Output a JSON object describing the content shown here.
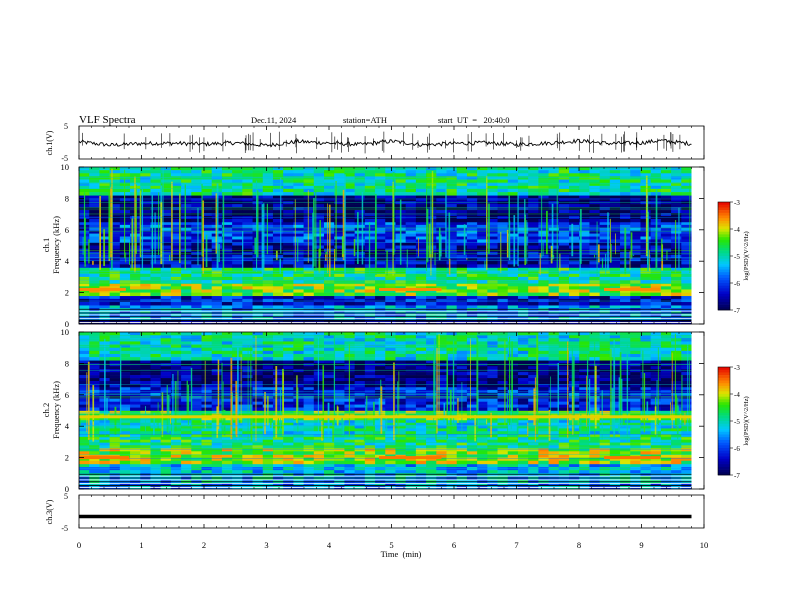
{
  "header": {
    "title": "VLF  Spectra",
    "date": "Dec.11, 2024",
    "station": "station=ATH",
    "start": "start  UT  =   20:40:0"
  },
  "colors": {
    "low": "#000066",
    "mid": "#00cc44",
    "high": "#ee0000",
    "trace": "#000000",
    "stripe": "#ffffff"
  },
  "chart_data": [
    {
      "type": "line",
      "name": "ch1-waveform",
      "ylabel": "ch.1(V)",
      "ylim": [
        -5,
        5
      ],
      "yticks": [
        "5",
        "-5"
      ],
      "xlim": [
        0,
        10
      ],
      "x": [
        0,
        0.5,
        1,
        1.5,
        2,
        2.5,
        3,
        3.5,
        4,
        4.5,
        5,
        5.5,
        6,
        6.5,
        7,
        7.5,
        8,
        8.5,
        9,
        9.3,
        9.8
      ],
      "y": [
        0.2,
        -0.8,
        -0.3,
        -0.2,
        -0.5,
        -0.1,
        -0.9,
        0.3,
        -0.2,
        -0.6,
        0.4,
        -0.7,
        -0.3,
        -0.1,
        -0.6,
        -0.2,
        0.5,
        -0.3,
        -0.1,
        0.6,
        -0.4
      ]
    },
    {
      "type": "heatmap",
      "name": "ch1-spectrogram",
      "ylabel": "ch.1\nFrequency (kHz)",
      "ylim": [
        0,
        10
      ],
      "yticks": [
        "0",
        "2",
        "4",
        "6",
        "8",
        "10"
      ],
      "xlim": [
        0,
        10
      ],
      "colorbar": {
        "label": "log(PSD)(V^2/Hz)",
        "range": [
          -7,
          -3
        ],
        "ticks": [
          "-3",
          "-4",
          "-5",
          "-6",
          "-7"
        ]
      },
      "bands_khz": [
        {
          "from": 0.0,
          "to": 0.3,
          "level": -7.0
        },
        {
          "from": 0.3,
          "to": 1.2,
          "level": -5.5
        },
        {
          "from": 1.2,
          "to": 1.8,
          "level": -6.3
        },
        {
          "from": 1.8,
          "to": 2.6,
          "level": -4.3
        },
        {
          "from": 2.6,
          "to": 3.6,
          "level": -4.8
        },
        {
          "from": 3.6,
          "to": 5.2,
          "level": -6.6
        },
        {
          "from": 5.2,
          "to": 6.5,
          "level": -6.0
        },
        {
          "from": 6.5,
          "to": 8.2,
          "level": -6.8
        },
        {
          "from": 8.2,
          "to": 10.0,
          "level": -4.9
        }
      ],
      "hot_segments": [
        {
          "t0": 0.0,
          "t1": 0.75,
          "f": 2.2,
          "level": -3.6
        },
        {
          "t0": 4.8,
          "t1": 5.8,
          "f": 2.2,
          "level": -3.6
        },
        {
          "t0": 8.4,
          "t1": 9.3,
          "f": 2.2,
          "level": -3.6
        }
      ]
    },
    {
      "type": "heatmap",
      "name": "ch2-spectrogram",
      "ylabel": "ch.2\nFrequency (kHz)",
      "ylim": [
        0,
        10
      ],
      "yticks": [
        "0",
        "2",
        "4",
        "6",
        "8",
        "10"
      ],
      "xlim": [
        0,
        10
      ],
      "colorbar": {
        "label": "log(PSD)(V^2/Hz)",
        "range": [
          -7,
          -3
        ],
        "ticks": [
          "-3",
          "-4",
          "-5",
          "-6",
          "-7"
        ]
      },
      "bands_khz": [
        {
          "from": 0.0,
          "to": 0.4,
          "level": -5.6
        },
        {
          "from": 0.4,
          "to": 1.6,
          "level": -5.3
        },
        {
          "from": 1.6,
          "to": 2.6,
          "level": -4.2
        },
        {
          "from": 2.6,
          "to": 3.5,
          "level": -4.8
        },
        {
          "from": 3.5,
          "to": 4.4,
          "level": -5.0
        },
        {
          "from": 4.4,
          "to": 5.0,
          "level": -4.4
        },
        {
          "from": 5.0,
          "to": 6.5,
          "level": -6.2
        },
        {
          "from": 6.5,
          "to": 8.2,
          "level": -6.8
        },
        {
          "from": 8.2,
          "to": 10.0,
          "level": -5.0
        }
      ],
      "hot_segments": [
        {
          "t0": 0.0,
          "t1": 0.8,
          "f": 2.0,
          "level": -3.5
        },
        {
          "t0": 4.8,
          "t1": 5.8,
          "f": 2.0,
          "level": -3.5
        },
        {
          "t0": 8.4,
          "t1": 9.3,
          "f": 2.0,
          "level": -3.5
        },
        {
          "t0": 0.0,
          "t1": 9.8,
          "f": 4.6,
          "level": -3.9
        }
      ]
    },
    {
      "type": "line",
      "name": "ch3-waveform",
      "ylabel": "ch.3(V)",
      "ylim": [
        -5,
        5
      ],
      "yticks": [
        "5",
        "-5"
      ],
      "xlim": [
        0,
        10
      ],
      "x": [
        0,
        9.8
      ],
      "y": [
        -1.5,
        -1.5
      ]
    }
  ],
  "xaxis": {
    "label": "Time  (min)",
    "ticks": [
      "0",
      "1",
      "2",
      "3",
      "4",
      "5",
      "6",
      "7",
      "8",
      "9",
      "10"
    ]
  }
}
